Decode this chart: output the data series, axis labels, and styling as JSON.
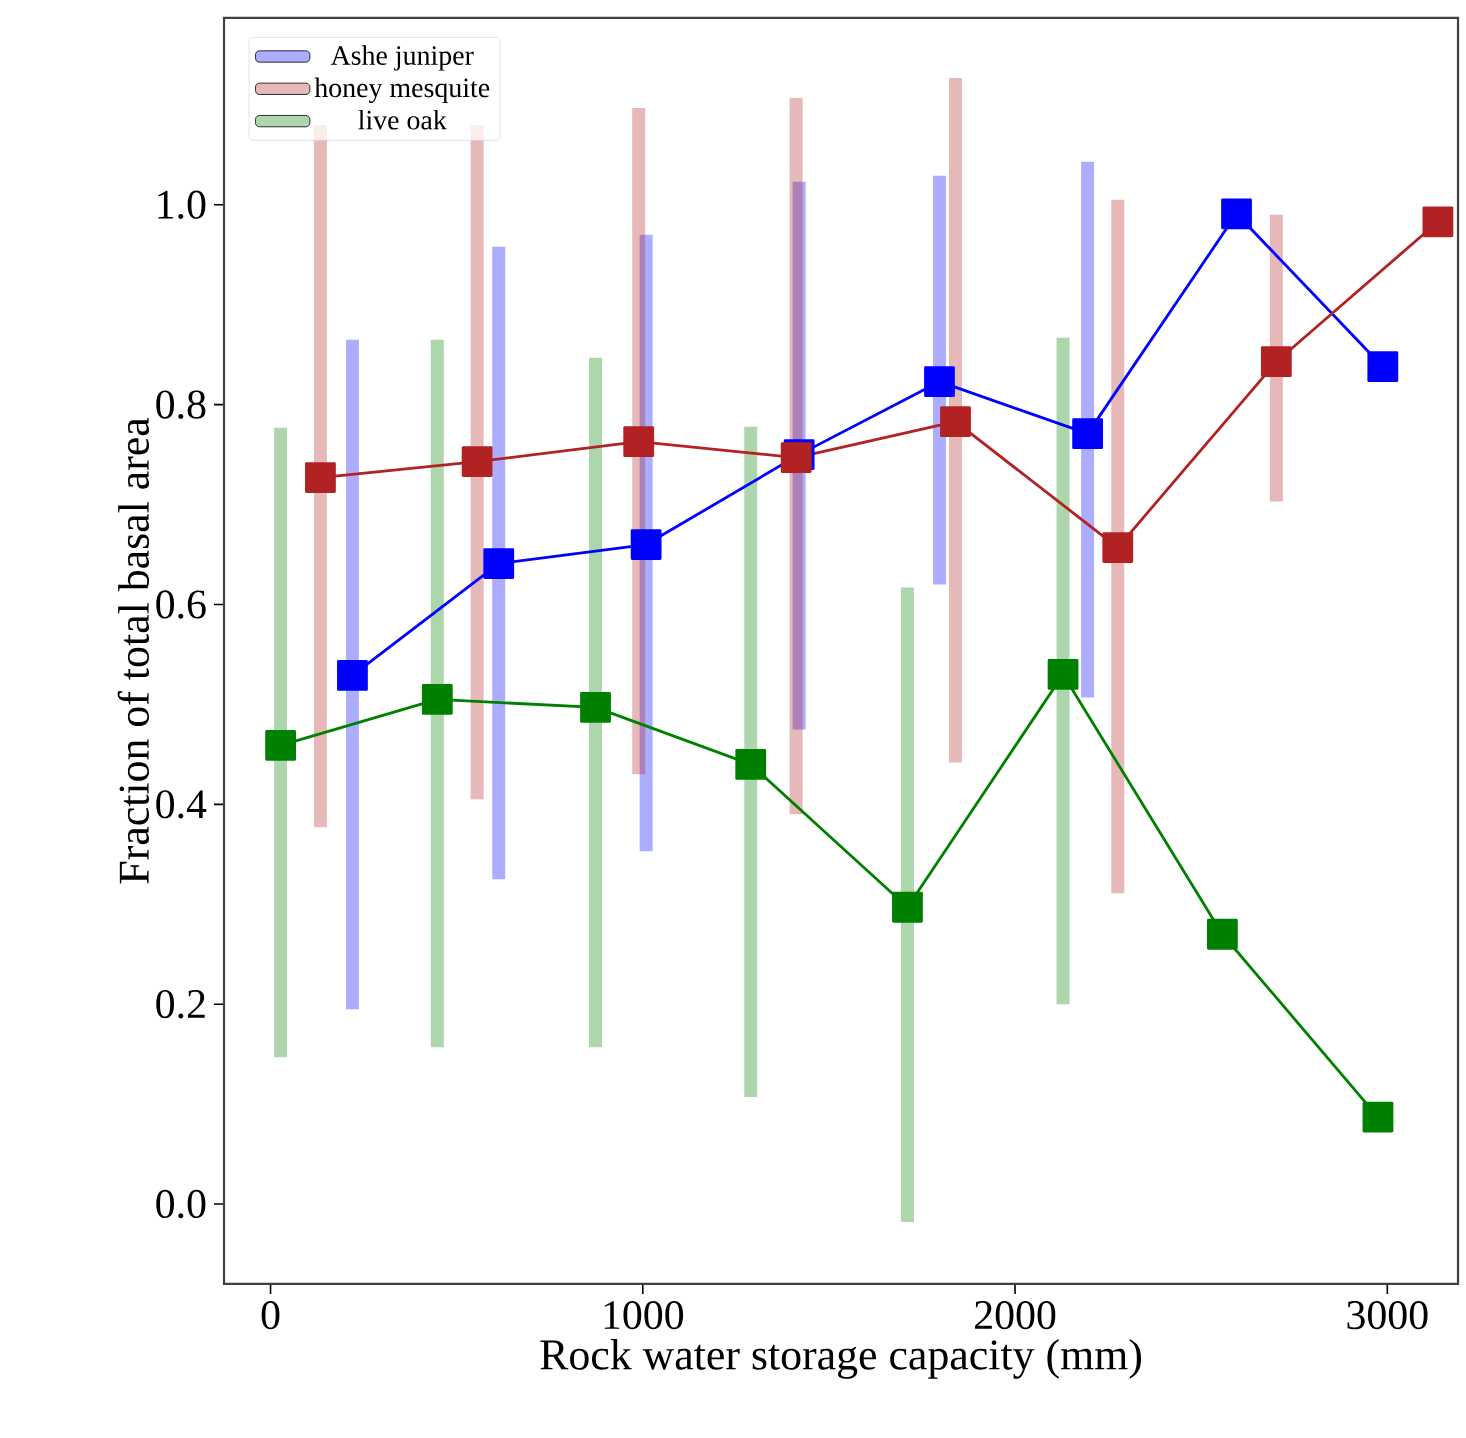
{
  "chart_data": {
    "type": "line",
    "xlabel": "Rock water storage capacity (mm)",
    "ylabel": "Fraction of total basal area",
    "xlim": [
      -125,
      3190
    ],
    "ylim": [
      -0.08,
      1.187
    ],
    "xticks": [
      0,
      1000,
      2000,
      3000
    ],
    "yticks": [
      {
        "value": 0,
        "label": "0.0"
      },
      0.2,
      0.4,
      0.6,
      0.8,
      {
        "value": 1,
        "label": "1.0"
      }
    ],
    "legend": "top left",
    "marker": "square",
    "line_style": "solid",
    "grid": false,
    "series": [
      {
        "name": "Ashe juniper",
        "color": "#0000ff",
        "x": [
          220,
          613,
          1009,
          1420,
          1797,
          2195,
          2595,
          2988
        ],
        "values": [
          0.529,
          0.641,
          0.66,
          0.75,
          0.823,
          0.771,
          0.991,
          0.838
        ],
        "errors": [
          [
            0.195,
            0.865
          ],
          [
            0.325,
            0.958
          ],
          [
            0.353,
            0.97
          ],
          [
            0.475,
            1.023
          ],
          [
            0.62,
            1.029
          ],
          [
            0.507,
            1.043
          ],
          null,
          null
        ]
      },
      {
        "name": "honey mesquite",
        "color": "#b22222",
        "x": [
          134,
          555,
          989,
          1412,
          1840,
          2276,
          2702,
          3136
        ],
        "values": [
          0.727,
          0.743,
          0.763,
          0.747,
          0.783,
          0.657,
          0.843,
          0.983
        ],
        "errors": [
          [
            0.377,
            1.08
          ],
          [
            0.405,
            1.08
          ],
          [
            0.43,
            1.097
          ],
          [
            0.39,
            1.107
          ],
          [
            0.442,
            1.127
          ],
          [
            0.311,
            1.005
          ],
          [
            0.703,
            0.99
          ],
          null
        ]
      },
      {
        "name": "live oak",
        "color": "#008000",
        "x": [
          27,
          448,
          873,
          1290,
          1711,
          2129,
          2557,
          2975
        ],
        "values": [
          0.459,
          0.505,
          0.497,
          0.44,
          0.297,
          0.53,
          0.27,
          0.087
        ],
        "errors": [
          [
            0.147,
            0.777
          ],
          [
            0.157,
            0.865
          ],
          [
            0.157,
            0.847
          ],
          [
            0.107,
            0.778
          ],
          [
            -0.018,
            0.617
          ],
          [
            0.2,
            0.867
          ],
          null,
          null
        ]
      }
    ]
  }
}
